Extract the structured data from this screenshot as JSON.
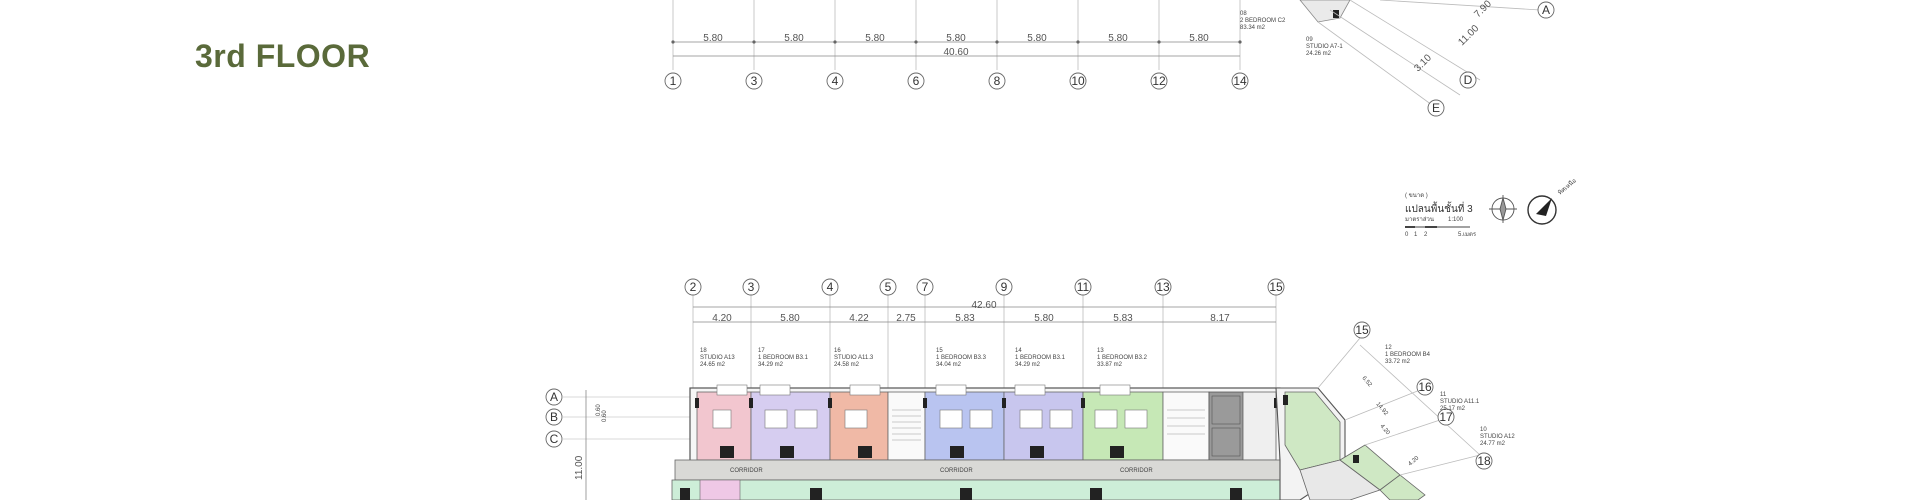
{
  "page": {
    "title": "3rd FLOOR"
  },
  "top_plan": {
    "segments": [
      "5.80",
      "5.80",
      "5.80",
      "5.80",
      "5.80",
      "5.80",
      "5.80"
    ],
    "total": "40.60",
    "grid_numbers": [
      "1",
      "3",
      "4",
      "6",
      "8",
      "10",
      "12",
      "14"
    ],
    "units": [
      {
        "no": "08",
        "type": "2 BEDROOM C2",
        "area": "83.34 m2"
      },
      {
        "no": "09",
        "type": "STUDIO A7-1",
        "area": "24.26 m2"
      }
    ],
    "diag_dims": [
      "7.90",
      "11.00",
      "3.10"
    ],
    "diag_letters": [
      "A",
      "D",
      "E"
    ]
  },
  "legend": {
    "small": "( ขนาด )",
    "title": "แปลนพื้นชั้นที่ 3",
    "scale_label": "มาตราส่วน",
    "scale": "1:100",
    "bar_ticks": [
      "0",
      "1",
      "2",
      "5.เมตร"
    ],
    "north": "ทิศเหนือ"
  },
  "bottom_plan": {
    "grid_numbers": [
      "2",
      "3",
      "4",
      "5",
      "7",
      "9",
      "11",
      "13",
      "15"
    ],
    "total": "42.60",
    "segments": [
      "4.20",
      "5.80",
      "4.22",
      "2.75",
      "5.83",
      "5.80",
      "5.83",
      "8.17"
    ],
    "row_letters": [
      "A",
      "B",
      "C"
    ],
    "left_dims": [
      "0.60",
      "0.60",
      "11.00"
    ],
    "units": [
      {
        "no": "18",
        "type": "STUDIO A13",
        "area": "24.65 m2"
      },
      {
        "no": "17",
        "type": "1 BEDROOM B3.1",
        "area": "34.29 m2"
      },
      {
        "no": "16",
        "type": "STUDIO A11.3",
        "area": "24.58 m2"
      },
      {
        "no": "15",
        "type": "1 BEDROOM B3.3",
        "area": "34.04 m2"
      },
      {
        "no": "14",
        "type": "1 BEDROOM B3.1",
        "area": "34.29 m2"
      },
      {
        "no": "13",
        "type": "1 BEDROOM B3.2",
        "area": "33.87 m2"
      }
    ],
    "right_units": [
      {
        "no": "12",
        "type": "1 BEDROOM B4",
        "area": "33.72 m2"
      },
      {
        "no": "11",
        "type": "STUDIO A11.1",
        "area": "25.17 m2"
      },
      {
        "no": "10",
        "type": "STUDIO A12",
        "area": "24.77 m2"
      }
    ],
    "diag_numbers": [
      "15",
      "16",
      "17",
      "18"
    ],
    "diag_dims": [
      "6.52",
      "14.92",
      "4.20",
      "4.20"
    ],
    "corridor": "CORRIDOR"
  },
  "colors": {
    "title": "#5a6a3a",
    "pink": "#f2c6cf",
    "lavender": "#d6cdf0",
    "salmon": "#f0b9a6",
    "blue": "#b9c4f0",
    "green": "#c6e8b6",
    "mint": "#cdeed8",
    "grey": "#9a9a9a"
  }
}
